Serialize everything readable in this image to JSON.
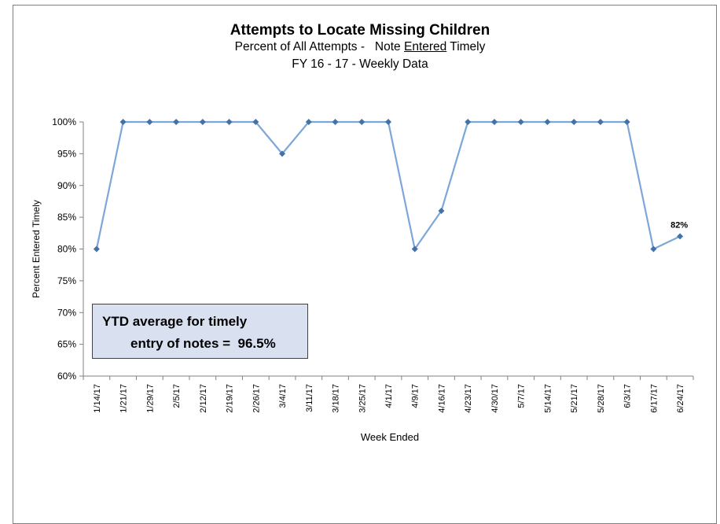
{
  "chart_data": {
    "type": "line",
    "title": "Attempts to Locate Missing Children",
    "subtitle_prefix": "Percent of All Attempts -   Note ",
    "subtitle_emph": "Entered",
    "subtitle_suffix": " Timely",
    "subtitle2": "FY 16 - 17 - Weekly Data",
    "xlabel": "Week Ended",
    "ylabel": "Percent Entered Timely",
    "ylim": [
      60,
      100
    ],
    "ytick_labels": [
      "60%",
      "65%",
      "70%",
      "75%",
      "80%",
      "85%",
      "90%",
      "95%",
      "100%"
    ],
    "yticks": [
      60,
      65,
      70,
      75,
      80,
      85,
      90,
      95,
      100
    ],
    "categories": [
      "1/14/17",
      "1/21/17",
      "1/29/17",
      "2/5/17",
      "2/12/17",
      "2/19/17",
      "2/26/17",
      "3/4/17",
      "3/11/17",
      "3/18/17",
      "3/25/17",
      "4/1/17",
      "4/9/17",
      "4/16/17",
      "4/23/17",
      "4/30/17",
      "5/7/17",
      "5/14/17",
      "5/21/17",
      "5/28/17",
      "6/3/17",
      "6/17/17",
      "6/24/17"
    ],
    "series": [
      {
        "values": [
          80,
          100,
          100,
          100,
          100,
          100,
          100,
          95,
          100,
          100,
          100,
          100,
          80,
          86,
          100,
          100,
          100,
          100,
          100,
          100,
          100,
          80,
          82
        ],
        "color": "#7da7d8",
        "marker_color": "#4472a8"
      }
    ],
    "annotations": [
      {
        "category": "6/24/17",
        "text": "82%"
      }
    ],
    "callout": {
      "line1": "YTD average for timely",
      "line2": "entry of notes =  96.5%"
    },
    "grid": false,
    "legend": "none"
  }
}
